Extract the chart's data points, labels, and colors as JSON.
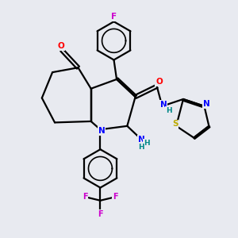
{
  "bg_color": "#e8eaf0",
  "bond_color": "#000000",
  "bond_lw": 1.6,
  "atom_colors": {
    "F": "#cc00cc",
    "O": "#ff0000",
    "N": "#0000ff",
    "S": "#bbaa00",
    "C": "#000000",
    "H": "#008888"
  },
  "font_size": 7.5,
  "fig_size": [
    3.0,
    3.0
  ],
  "dpi": 100,
  "xlim": [
    0,
    10
  ],
  "ylim": [
    0,
    10
  ]
}
